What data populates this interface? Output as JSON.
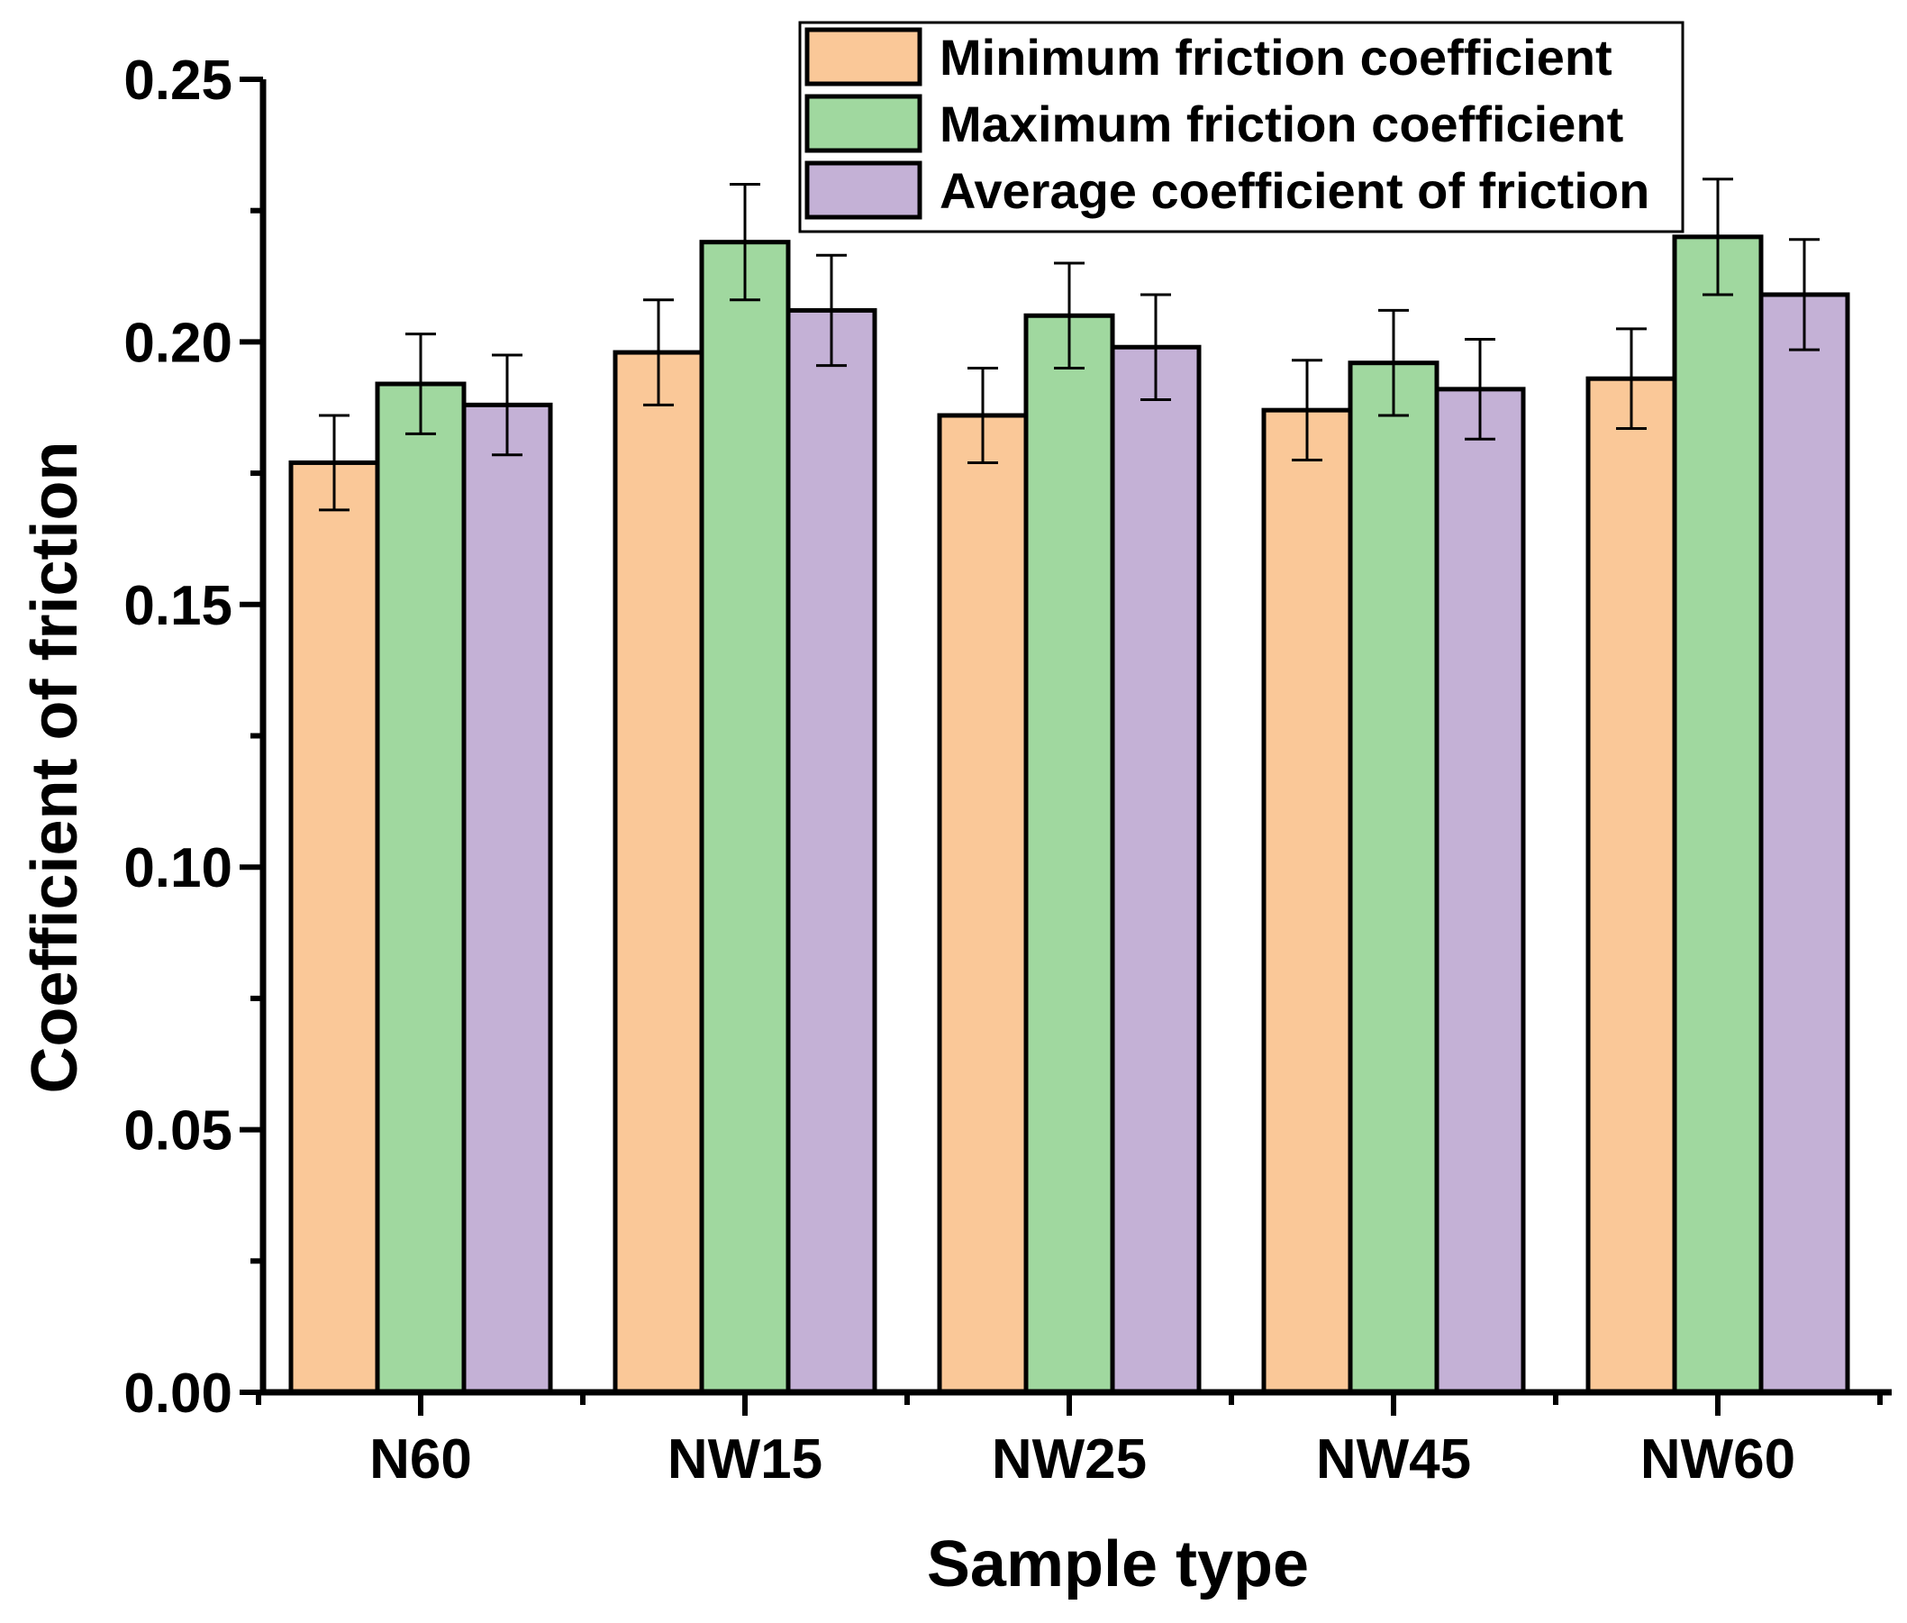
{
  "chart_data": {
    "type": "bar",
    "title": "",
    "xlabel": "Sample type",
    "ylabel": "Coefficient of friction",
    "ylim": [
      0,
      0.25
    ],
    "yticks": [
      "0.00",
      "0.05",
      "0.10",
      "0.15",
      "0.20",
      "0.25"
    ],
    "ytick_values": [
      0,
      0.05,
      0.1,
      0.15,
      0.2,
      0.25
    ],
    "categories": [
      "N60",
      "NW15",
      "NW25",
      "NW45",
      "NW60"
    ],
    "series": [
      {
        "name": "Minimum friction coefficient",
        "color": "#fac898",
        "values": [
          0.177,
          0.198,
          0.186,
          0.187,
          0.193
        ],
        "errors": [
          0.009,
          0.01,
          0.009,
          0.0095,
          0.0095
        ]
      },
      {
        "name": "Maximum friction coefficient",
        "color": "#a0d89f",
        "values": [
          0.192,
          0.219,
          0.205,
          0.196,
          0.22
        ],
        "errors": [
          0.0095,
          0.011,
          0.01,
          0.01,
          0.011
        ]
      },
      {
        "name": "Average coefficient of friction",
        "color": "#c4b1d6",
        "values": [
          0.188,
          0.206,
          0.199,
          0.191,
          0.209
        ],
        "errors": [
          0.0095,
          0.0105,
          0.01,
          0.0095,
          0.0105
        ]
      }
    ],
    "legend_position": "top-right",
    "grid": false
  }
}
